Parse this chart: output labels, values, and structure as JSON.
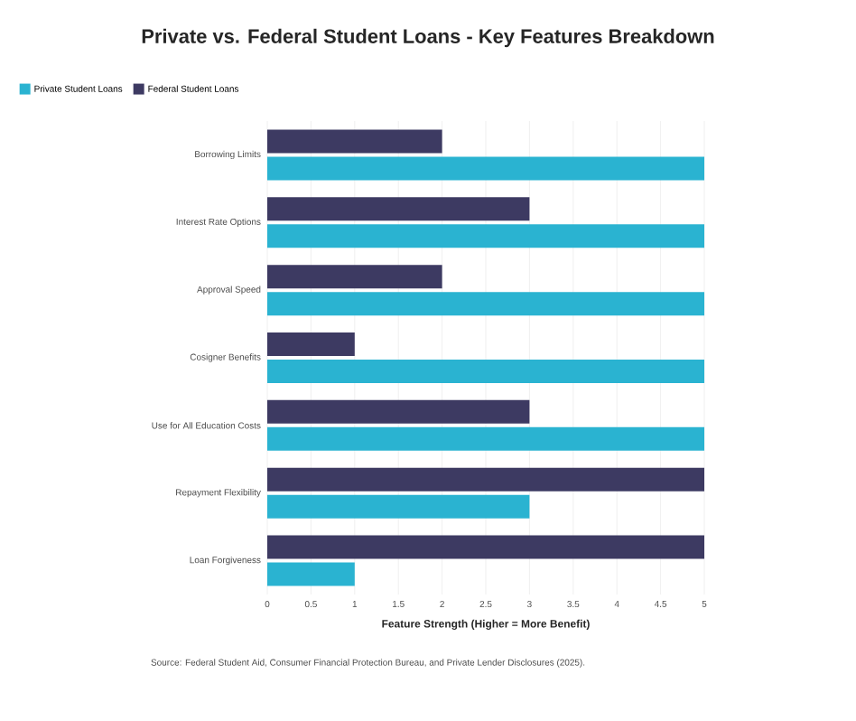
{
  "chart_data": {
    "type": "bar",
    "orientation": "horizontal",
    "title": "Private vs. Federal Student Loans - Key Features Breakdown",
    "xlabel": "Feature Strength (Higher = More Benefit)",
    "categories": [
      "Borrowing Limits",
      "Interest Rate Options",
      "Approval Speed",
      "Cosigner Benefits",
      "Use for All Education Costs",
      "Repayment Flexibility",
      "Loan Forgiveness"
    ],
    "series": [
      {
        "name": "Private Student Loans",
        "color": "#2ab3d1",
        "values": [
          5,
          5,
          5,
          5,
          5,
          3,
          1
        ]
      },
      {
        "name": "Federal Student Loans",
        "color": "#3d3a62",
        "values": [
          2,
          3,
          2,
          1,
          3,
          5,
          5
        ]
      }
    ],
    "xlim": [
      0,
      5
    ],
    "xticks": [
      0,
      0.5,
      1,
      1.5,
      2,
      2.5,
      3,
      3.5,
      4,
      4.5,
      5
    ],
    "grid": "x",
    "legend": "top left",
    "annotations": [
      "Source: Federal Student Aid, Consumer Financial Protection Bureau, and Private Lender Disclosures (2025)."
    ]
  }
}
